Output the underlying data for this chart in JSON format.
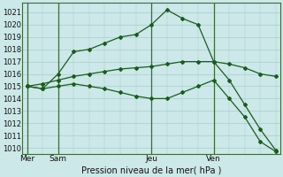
{
  "title": "Pression niveau de la mer( hPa )",
  "bg_color": "#cce8e8",
  "grid_color": "#aacccc",
  "line_color": "#1a5c1a",
  "ylim": [
    1009.5,
    1021.8
  ],
  "yticks": [
    1010,
    1011,
    1012,
    1013,
    1014,
    1015,
    1016,
    1017,
    1018,
    1019,
    1020,
    1021
  ],
  "xtick_labels": [
    "Mer",
    "Sam",
    "Jeu",
    "Ven"
  ],
  "xtick_positions": [
    0,
    2,
    8,
    12
  ],
  "n_points": 17,
  "line_high": [
    1015.0,
    1014.8,
    1016.0,
    1017.8,
    1018.0,
    1018.5,
    1019.0,
    1019.2,
    1020.0,
    1021.2,
    1020.5,
    1020.0,
    1017.0,
    1015.5,
    1013.5,
    1011.5,
    1009.8
  ],
  "line_flat": [
    1015.0,
    1015.2,
    1015.5,
    1015.8,
    1016.0,
    1016.2,
    1016.4,
    1016.5,
    1016.6,
    1016.8,
    1017.0,
    1017.0,
    1017.0,
    1016.8,
    1016.5,
    1016.0,
    1015.8
  ],
  "line_low": [
    1015.0,
    1014.8,
    1015.0,
    1015.2,
    1015.0,
    1014.8,
    1014.5,
    1014.2,
    1014.0,
    1014.0,
    1014.5,
    1015.0,
    1015.5,
    1014.0,
    1012.5,
    1010.5,
    1009.7
  ]
}
